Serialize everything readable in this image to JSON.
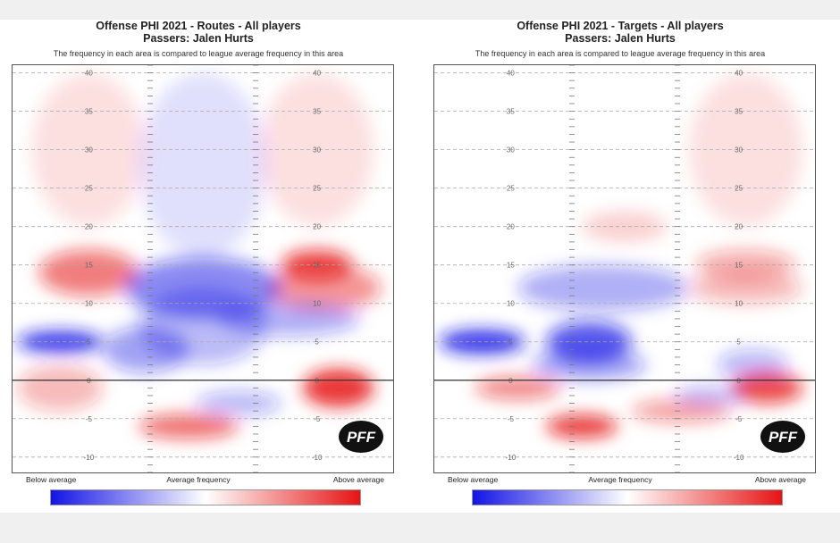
{
  "charts": [
    {
      "title_line1": "Offense PHI 2021 - Routes - All players",
      "title_line2": "Passers: Jalen Hurts",
      "subtitle": "The frequency in each area is compared to league average frequency in this area",
      "scale_labels": {
        "below": "Below average",
        "average": "Average frequency",
        "above": "Above average"
      },
      "logo_text": "PFF"
    },
    {
      "title_line1": "Offense PHI 2021 - Targets - All players",
      "title_line2": "Passers: Jalen Hurts",
      "subtitle": "The frequency in each area is compared to league average frequency in this area",
      "scale_labels": {
        "below": "Below average",
        "average": "Average frequency",
        "above": "Above average"
      },
      "logo_text": "PFF"
    }
  ],
  "colors": {
    "below": "#1414e6",
    "average": "#ffffff",
    "above": "#e61414"
  },
  "chart_data": [
    {
      "type": "heatmap",
      "title": "Offense PHI 2021 - Routes - All players",
      "subtitle": "Passers: Jalen Hurts",
      "y_ticks": [
        40,
        35,
        30,
        25,
        20,
        15,
        10,
        5,
        0,
        -5,
        -10
      ],
      "ylim": [
        -12,
        41
      ],
      "xlim": [
        -26.7,
        26.7
      ],
      "grid": true,
      "line_of_scrimmage": 0,
      "color_scale": [
        "Below average",
        "Average frequency",
        "Above average"
      ],
      "hotspots": [
        {
          "x": -16,
          "y": 30,
          "value": 0.12,
          "rx": 8,
          "ry": 10
        },
        {
          "x": 16,
          "y": 30,
          "value": 0.12,
          "rx": 8,
          "ry": 10
        },
        {
          "x": -16,
          "y": 14,
          "value": 0.55,
          "rx": 7,
          "ry": 3
        },
        {
          "x": 16,
          "y": 15,
          "value": 0.75,
          "rx": 5,
          "ry": 2
        },
        {
          "x": 17,
          "y": 12,
          "value": 0.45,
          "rx": 8,
          "ry": 3
        },
        {
          "x": 0,
          "y": 12,
          "value": -0.5,
          "rx": 11,
          "ry": 4
        },
        {
          "x": 0,
          "y": 28,
          "value": -0.12,
          "rx": 9,
          "ry": 12
        },
        {
          "x": 0,
          "y": 7,
          "value": -0.3,
          "rx": 9,
          "ry": 5
        },
        {
          "x": -20,
          "y": 5,
          "value": -0.85,
          "rx": 6,
          "ry": 1.4
        },
        {
          "x": -8,
          "y": 4,
          "value": -0.4,
          "rx": 6,
          "ry": 3
        },
        {
          "x": 12,
          "y": 8,
          "value": -0.35,
          "rx": 10,
          "ry": 2.2
        },
        {
          "x": -20,
          "y": -1,
          "value": 0.3,
          "rx": 6,
          "ry": 3
        },
        {
          "x": 19,
          "y": -1,
          "value": 0.85,
          "rx": 5,
          "ry": 2.5
        },
        {
          "x": -2,
          "y": -6,
          "value": 0.6,
          "rx": 7,
          "ry": 1.6
        },
        {
          "x": 5,
          "y": -3,
          "value": -0.3,
          "rx": 6,
          "ry": 1.6
        }
      ]
    },
    {
      "type": "heatmap",
      "title": "Offense PHI 2021 - Targets - All players",
      "subtitle": "Passers: Jalen Hurts",
      "y_ticks": [
        40,
        35,
        30,
        25,
        20,
        15,
        10,
        5,
        0,
        -5,
        -10
      ],
      "ylim": [
        -12,
        41
      ],
      "xlim": [
        -26.7,
        26.7
      ],
      "grid": true,
      "line_of_scrimmage": 0,
      "color_scale": [
        "Below average",
        "Average frequency",
        "Above average"
      ],
      "hotspots": [
        {
          "x": 17,
          "y": 30,
          "value": 0.12,
          "rx": 8,
          "ry": 10
        },
        {
          "x": -20,
          "y": 5,
          "value": -0.85,
          "rx": 6,
          "ry": 1.6
        },
        {
          "x": -5,
          "y": 5,
          "value": -0.7,
          "rx": 6,
          "ry": 2.6
        },
        {
          "x": -5,
          "y": 2,
          "value": -0.4,
          "rx": 8,
          "ry": 2
        },
        {
          "x": -3,
          "y": 12,
          "value": -0.35,
          "rx": 12,
          "ry": 3
        },
        {
          "x": 17,
          "y": 15,
          "value": 0.35,
          "rx": 7,
          "ry": 2
        },
        {
          "x": 17,
          "y": 12,
          "value": 0.3,
          "rx": 8,
          "ry": 2
        },
        {
          "x": 18,
          "y": 2,
          "value": -0.3,
          "rx": 5,
          "ry": 2
        },
        {
          "x": 0,
          "y": 20,
          "value": 0.18,
          "rx": 6,
          "ry": 2
        },
        {
          "x": -15,
          "y": -1,
          "value": 0.5,
          "rx": 6,
          "ry": 1.5
        },
        {
          "x": 20,
          "y": -1,
          "value": 0.75,
          "rx": 5,
          "ry": 2
        },
        {
          "x": -6,
          "y": -6,
          "value": 0.8,
          "rx": 5,
          "ry": 1.5
        },
        {
          "x": 8,
          "y": -4,
          "value": 0.4,
          "rx": 7,
          "ry": 1.5
        },
        {
          "x": 12,
          "y": -2,
          "value": -0.3,
          "rx": 5,
          "ry": 1.2
        }
      ]
    }
  ]
}
